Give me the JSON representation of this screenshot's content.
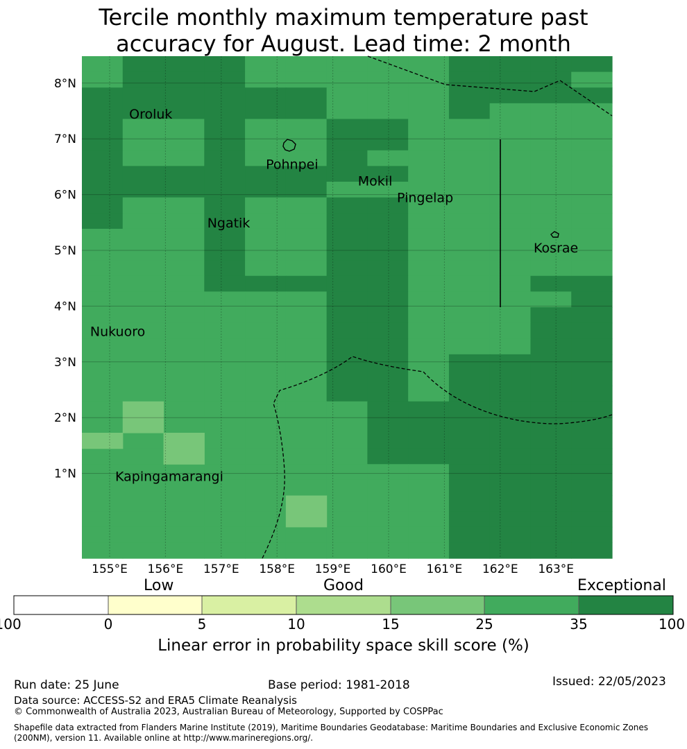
{
  "title_line1": "Tercile monthly maximum temperature past",
  "title_line2": "accuracy for August. Lead time: 2 month",
  "map": {
    "lon_ticks": [
      "155°E",
      "156°E",
      "157°E",
      "158°E",
      "159°E",
      "160°E",
      "161°E",
      "162°E",
      "163°E"
    ],
    "lat_ticks": [
      "8°N",
      "7°N",
      "6°N",
      "5°N",
      "4°N",
      "3°N",
      "2°N",
      "1°N"
    ],
    "colors": {
      "c15_25": "#78c679",
      "c25_35": "#41ab5d",
      "c35_100": "#238443"
    },
    "grid_rows": [
      "BCCCBBBBBCCCC",
      "BCCCBBBBBCCCB",
      "CCCCCCBBBCCCC",
      "CCCCCCBBBCBBB",
      "CBBCBBCCBBBBB",
      "CBBCBBCCBBBBB",
      "CBBCBBCBBBBBB",
      "CCCCCCCCBBBBB",
      "CCCCCCBBBBBBB",
      "CBBCBBCCBBBBB",
      "CBBCBBCCBBBBB",
      "BBBCBBCCBBBBB",
      "BBBCBBCCBBBBB",
      "BBBCBBCCBBBBB",
      "BBBCCCCCBBBCC",
      "BBBBBBCCBBBBC",
      "BBBBBBCCBBBCC",
      "BBBBBBCCBBBCC",
      "BBBBBBCCBBBCC",
      "BBBBBBCCBCCCC",
      "BBBBBBCCBCCCC",
      "BBBBBBCCBCCCC",
      "BBBBBBBCCCCCC",
      "BBBBBBBCCCCCC",
      "BBBBBBBCCCCCC",
      "BBBBBBBCCCCCC",
      "BBBBBBBBBCCCC",
      "BBBBBBBBBCCCC",
      "BBBBBBBBBCCCC",
      "BBBBBBBBBCCCC",
      "BBBBBBBBBCCCC",
      "BBBBBBBBBCCCC"
    ],
    "places": [
      {
        "name": "Oroluk",
        "lon": 155.35,
        "lat": 7.45
      },
      {
        "name": "Pohnpei",
        "lon": 157.8,
        "lat": 6.55
      },
      {
        "name": "Mokil",
        "lon": 159.45,
        "lat": 6.25
      },
      {
        "name": "Pingelap",
        "lon": 160.15,
        "lat": 5.95
      },
      {
        "name": "Ngatik",
        "lon": 156.75,
        "lat": 5.5
      },
      {
        "name": "Kosrae",
        "lon": 162.6,
        "lat": 5.05
      },
      {
        "name": "Nukuoro",
        "lon": 154.65,
        "lat": 3.55
      },
      {
        "name": "Kapingamarangi",
        "lon": 155.1,
        "lat": 0.95
      }
    ]
  },
  "colorbar": {
    "category_labels": [
      "Low",
      "Good",
      "Exceptional"
    ],
    "ticks": [
      "-100",
      "0",
      "5",
      "10",
      "15",
      "25",
      "35",
      "100"
    ],
    "colors": [
      "#ffffff",
      "#ffffcc",
      "#d9f0a3",
      "#addd8e",
      "#78c679",
      "#41ab5d",
      "#238443"
    ],
    "title": "Linear error in probability space skill score (%)"
  },
  "footer": {
    "run_date": "Run date: 25 June",
    "base_period": "Base period: 1981-2018",
    "issued": "Issued: 22/05/2023",
    "data_source": "Data source: ACCESS-S2 and ERA5 Climate Reanalysis",
    "copyright": "© Commonwealth of Australia 2023, Australian Bureau of Meteorology, Supported by COSPPac",
    "shapefile": "Shapefile data extracted from Flanders Marine Institute (2019), Maritime Boundaries Geodatabase: Maritime Boundaries and Exclusive Economic Zones (200NM), version 11. Available online at http://www.marineregions.org/."
  }
}
